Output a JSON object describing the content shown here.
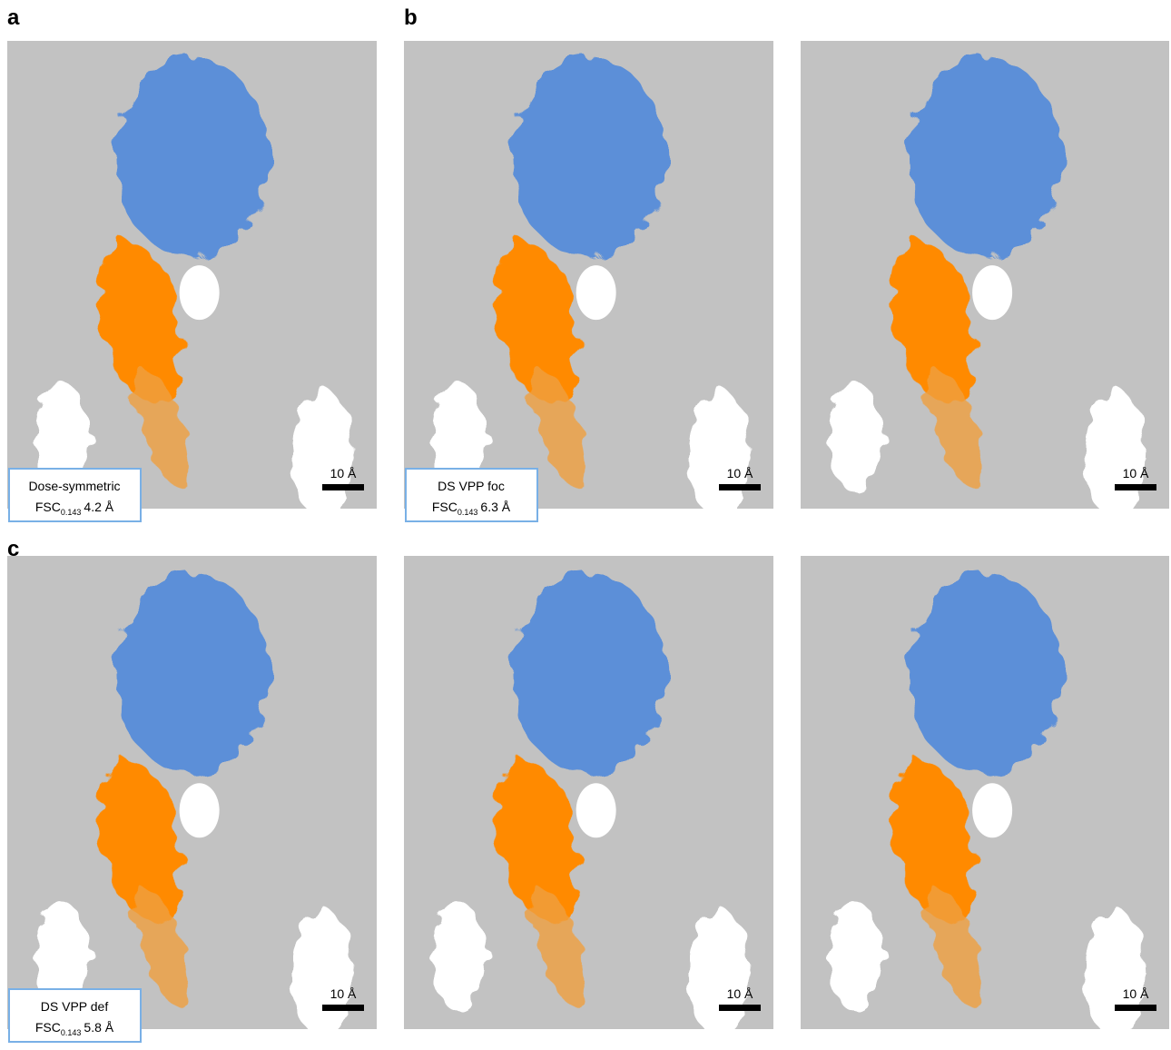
{
  "panel_labels": [
    "a",
    "b",
    "c"
  ],
  "images": [
    {
      "scale_bar": "10 Å",
      "caption": {
        "method": "Dose-symmetric",
        "fsc": "FSC",
        "fsc_subscript": "0.143",
        "resolution": "4.2 Å"
      }
    },
    {
      "scale_bar": "10 Å",
      "caption": {
        "method": "DS VPP foc",
        "fsc": "FSC",
        "fsc_subscript": "0.143",
        "resolution": "6.3 Å"
      }
    },
    {
      "scale_bar": "10 Å"
    },
    {
      "scale_bar": "10 Å",
      "caption": {
        "method": "DS VPP def",
        "fsc": "FSC",
        "fsc_subscript": "0.143",
        "resolution": "5.8 Å"
      }
    },
    {
      "scale_bar": "10 Å"
    },
    {
      "scale_bar": "10 Å"
    }
  ]
}
